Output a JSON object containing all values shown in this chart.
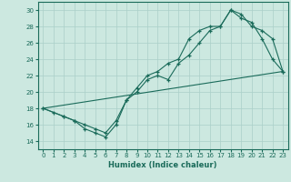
{
  "xlabel": "Humidex (Indice chaleur)",
  "ylabel": "",
  "background_color": "#cce8e0",
  "grid_color": "#aacfc8",
  "line_color": "#1a6b5a",
  "ylim": [
    13,
    31
  ],
  "xlim": [
    -0.5,
    23.5
  ],
  "yticks": [
    14,
    16,
    18,
    20,
    22,
    24,
    26,
    28,
    30
  ],
  "xticks": [
    0,
    1,
    2,
    3,
    4,
    5,
    6,
    7,
    8,
    9,
    10,
    11,
    12,
    13,
    14,
    15,
    16,
    17,
    18,
    19,
    20,
    21,
    22,
    23
  ],
  "line1_x": [
    0,
    1,
    2,
    3,
    4,
    5,
    6,
    7,
    8,
    9,
    10,
    11,
    12,
    13,
    14,
    15,
    16,
    17,
    18,
    19,
    20,
    21,
    22,
    23
  ],
  "line1_y": [
    18.0,
    17.5,
    17.0,
    16.5,
    15.5,
    15.0,
    14.5,
    16.0,
    19.0,
    20.0,
    21.5,
    22.0,
    21.5,
    23.5,
    24.5,
    26.0,
    27.5,
    28.0,
    30.0,
    29.0,
    28.5,
    26.5,
    24.0,
    22.5
  ],
  "line2_x": [
    0,
    2,
    3,
    4,
    5,
    6,
    7,
    8,
    9,
    10,
    11,
    12,
    13,
    14,
    15,
    16,
    17,
    18,
    19,
    20,
    21,
    22,
    23
  ],
  "line2_y": [
    18.0,
    17.0,
    16.5,
    16.0,
    15.5,
    15.0,
    16.5,
    19.0,
    20.5,
    22.0,
    22.5,
    23.5,
    24.0,
    26.5,
    27.5,
    28.0,
    28.0,
    30.0,
    29.5,
    28.0,
    27.5,
    26.5,
    22.5
  ],
  "line3_x": [
    0,
    23
  ],
  "line3_y": [
    18.0,
    22.5
  ]
}
